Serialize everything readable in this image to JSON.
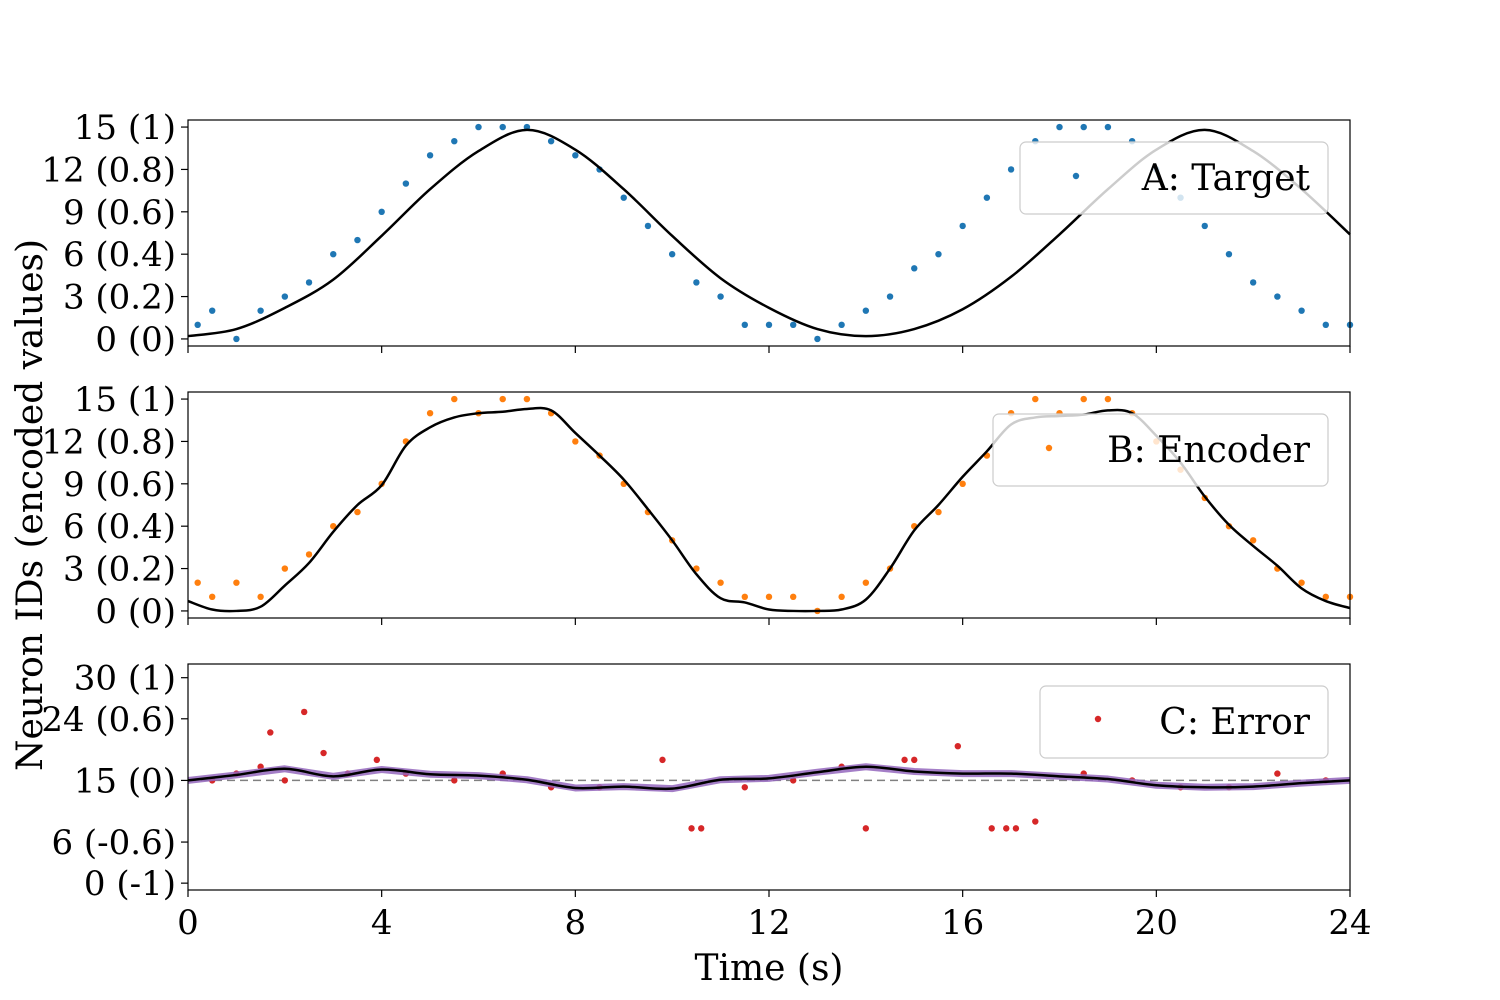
{
  "chart_data": {
    "type": "scatter",
    "shared_x": {
      "label": "Time (s)",
      "range": [
        0,
        24
      ],
      "ticks": [
        0,
        4,
        8,
        12,
        16,
        20,
        24
      ],
      "tick_labels": [
        "0",
        "4",
        "8",
        "12",
        "16",
        "20",
        "24"
      ]
    },
    "shared_ylabel": "Neuron IDs (encoded values)",
    "panels": [
      {
        "id": "A",
        "legend": "A: Target",
        "legend_location": "upper right",
        "ylim": [
          -0.5,
          15.5
        ],
        "yticks": [
          0,
          3,
          6,
          9,
          12,
          15
        ],
        "ytick_labels": [
          "0 (0)",
          "3 (0.2)",
          "6 (0.4)",
          "9 (0.6)",
          "12 (0.8)",
          "15 (1)"
        ],
        "scatter_color": "#1f77b4",
        "line_color": "#000000",
        "line": {
          "description": "decoded target value, sinusoid",
          "x": [
            0,
            1,
            2,
            3,
            4,
            5,
            6,
            7,
            8,
            9,
            10,
            11,
            12,
            13,
            14,
            15,
            16,
            17,
            18,
            19,
            20,
            21,
            22,
            23,
            24
          ],
          "y": [
            0.2,
            0.7,
            2.2,
            4.2,
            7.3,
            10.6,
            13.3,
            14.8,
            13.4,
            10.6,
            7.3,
            4.3,
            2.2,
            0.7,
            0.2,
            0.7,
            2.1,
            4.4,
            7.4,
            10.6,
            13.4,
            14.8,
            13.3,
            10.6,
            7.4
          ]
        },
        "spikes": {
          "description": "spike raster, neuron id vs time, bands follow the target curve",
          "t": [
            0.2,
            0.5,
            1.0,
            1.5,
            2.0,
            2.5,
            3.0,
            3.5,
            4.0,
            4.5,
            5.0,
            5.5,
            6.0,
            6.5,
            7.0,
            7.5,
            8.0,
            8.5,
            9.0,
            9.5,
            10.0,
            10.5,
            11.0,
            11.5,
            12.0,
            12.5,
            13.0,
            13.5,
            14.0,
            14.5,
            15.0,
            15.5,
            16.0,
            16.5,
            17.0,
            17.5,
            18.0,
            18.5,
            19.0,
            19.5,
            20.0,
            20.5,
            21.0,
            21.5,
            22.0,
            22.5,
            23.0,
            23.5,
            24.0
          ],
          "id": [
            1,
            2,
            0,
            2,
            3,
            4,
            6,
            7,
            9,
            11,
            13,
            14,
            15,
            15,
            15,
            14,
            13,
            12,
            10,
            8,
            6,
            4,
            3,
            1,
            1,
            1,
            0,
            1,
            2,
            3,
            5,
            6,
            8,
            10,
            12,
            14,
            15,
            15,
            15,
            14,
            12,
            10,
            8,
            6,
            4,
            3,
            2,
            1,
            1
          ]
        }
      },
      {
        "id": "B",
        "legend": "B: Encoder",
        "legend_location": "upper right",
        "ylim": [
          -0.5,
          15.5
        ],
        "yticks": [
          0,
          3,
          6,
          9,
          12,
          15
        ],
        "ytick_labels": [
          "0 (0)",
          "3 (0.2)",
          "6 (0.4)",
          "9 (0.6)",
          "12 (0.8)",
          "15 (1)"
        ],
        "scatter_color": "#ff7f0e",
        "line_color": "#000000",
        "line": {
          "description": "decoded encoder output",
          "x": [
            0,
            0.5,
            1.0,
            1.5,
            2.0,
            2.5,
            3.0,
            3.5,
            4.0,
            4.5,
            5.0,
            5.5,
            6.0,
            6.5,
            7.0,
            7.5,
            8.0,
            8.5,
            9.0,
            9.5,
            10.0,
            10.5,
            11.0,
            11.5,
            12.0,
            12.5,
            13.0,
            13.5,
            14.0,
            14.5,
            15.0,
            15.5,
            16.0,
            16.5,
            17.0,
            17.5,
            18.0,
            18.5,
            19.0,
            19.5,
            20.0,
            20.5,
            21.0,
            21.5,
            22.0,
            22.5,
            23.0,
            23.5,
            24.0
          ],
          "y": [
            0.7,
            0.1,
            0.0,
            0.3,
            1.8,
            3.4,
            5.6,
            7.5,
            8.9,
            11.7,
            13.0,
            13.7,
            14.0,
            14.1,
            14.3,
            14.2,
            12.6,
            11.0,
            9.3,
            7.2,
            5.0,
            2.6,
            0.9,
            0.6,
            0.1,
            0.0,
            0.0,
            0.1,
            0.8,
            3.0,
            5.7,
            7.5,
            9.5,
            11.3,
            13.2,
            13.7,
            13.8,
            13.9,
            14.2,
            14.0,
            12.4,
            10.5,
            8.1,
            6.1,
            4.6,
            3.2,
            1.6,
            0.7,
            0.2
          ]
        },
        "spikes": {
          "description": "spike raster of encoder neurons",
          "t": [
            0.2,
            0.5,
            1.0,
            1.5,
            2.0,
            2.5,
            3.0,
            3.5,
            4.0,
            4.5,
            5.0,
            5.5,
            6.0,
            6.5,
            7.0,
            7.5,
            8.0,
            8.5,
            9.0,
            9.5,
            10.0,
            10.5,
            11.0,
            11.5,
            12.0,
            12.5,
            13.0,
            13.5,
            14.0,
            14.5,
            15.0,
            15.5,
            16.0,
            16.5,
            17.0,
            17.5,
            18.0,
            18.5,
            19.0,
            19.5,
            20.0,
            20.5,
            21.0,
            21.5,
            22.0,
            22.5,
            23.0,
            23.5,
            24.0
          ],
          "id": [
            2,
            1,
            2,
            1,
            3,
            4,
            6,
            7,
            9,
            12,
            14,
            15,
            14,
            15,
            15,
            14,
            12,
            11,
            9,
            7,
            5,
            3,
            2,
            1,
            1,
            1,
            0,
            1,
            2,
            3,
            6,
            7,
            9,
            11,
            14,
            15,
            14,
            15,
            15,
            14,
            12,
            10,
            8,
            6,
            5,
            3,
            2,
            1,
            1
          ]
        }
      },
      {
        "id": "C",
        "legend": "C: Error",
        "legend_location": "upper right",
        "ylim": [
          -1,
          32
        ],
        "yticks": [
          0,
          6,
          15,
          24,
          30
        ],
        "ytick_labels": [
          "0 (-1)",
          "6 (-0.6)",
          "15 (0)",
          "24 (0.6)",
          "30 (1)"
        ],
        "scatter_color": "#d62728",
        "smoothed_color": "#9467bd",
        "line_color": "#000000",
        "zero_reference": 15,
        "line": {
          "description": "decoded error, hovers around zero (id 15)",
          "x": [
            0,
            1,
            2,
            3,
            4,
            5,
            6,
            7,
            8,
            9,
            10,
            11,
            12,
            13,
            14,
            15,
            16,
            17,
            18,
            19,
            20,
            21,
            22,
            23,
            24
          ],
          "y": [
            15.0,
            15.8,
            16.7,
            15.6,
            16.6,
            15.9,
            15.7,
            15.1,
            13.9,
            14.1,
            13.8,
            15.1,
            15.3,
            16.2,
            17.0,
            16.3,
            16.0,
            16.0,
            15.6,
            15.2,
            14.3,
            14.0,
            14.1,
            14.6,
            15.0
          ]
        },
        "spikes": {
          "description": "error neuron spikes",
          "t": [
            0.5,
            1.0,
            1.5,
            1.7,
            2.0,
            2.4,
            2.8,
            3.3,
            3.9,
            4.5,
            5.5,
            6.5,
            7.5,
            8.5,
            9.8,
            10.4,
            10.6,
            11.5,
            12.5,
            13.5,
            14.0,
            14.8,
            15.0,
            15.9,
            16.6,
            16.9,
            17.1,
            17.5,
            18.5,
            19.5,
            20.5,
            21.5,
            22.5,
            23.5
          ],
          "id": [
            15,
            16,
            17,
            22,
            15,
            25,
            19,
            16,
            18,
            16,
            15,
            16,
            14,
            14,
            18,
            8,
            8,
            14,
            15,
            17,
            8,
            18,
            18,
            20,
            8,
            8,
            8,
            9,
            16,
            15,
            14,
            14,
            16,
            15
          ]
        }
      }
    ]
  }
}
